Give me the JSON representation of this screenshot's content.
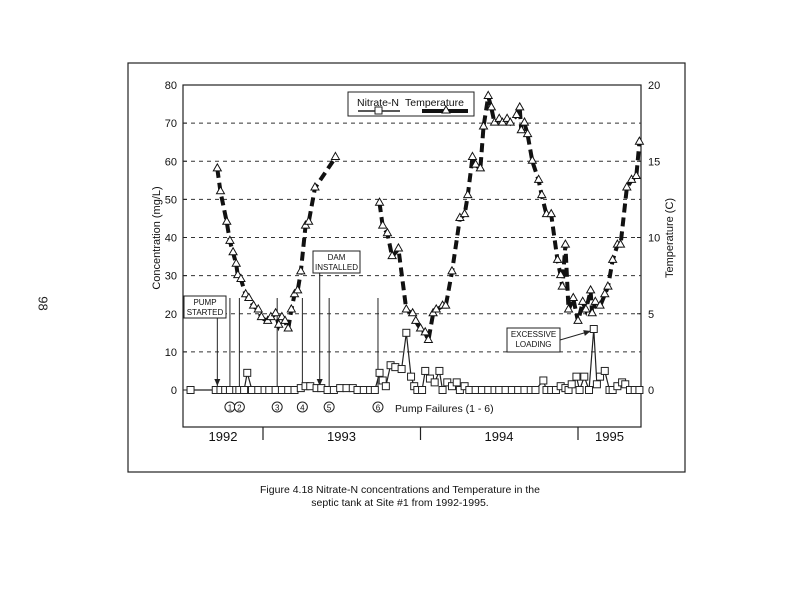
{
  "page_number": "98",
  "caption": {
    "line1": "Figure 4.18  Nitrate-N concentrations and Temperature in the",
    "line2": "septic tank at Site #1 from 1992-1995."
  },
  "chart_data": {
    "type": "line",
    "title": "",
    "xlabel": "",
    "ylabel": "Concentration (mg/L)",
    "y2label": "Temperature (C)",
    "xlim": [
      1992.49,
      1995.4
    ],
    "ylim": [
      0,
      80
    ],
    "y2lim": [
      0,
      20
    ],
    "yticks": [
      "0",
      "10",
      "20",
      "30",
      "40",
      "50",
      "60",
      "70",
      "80"
    ],
    "y2ticks": [
      "0",
      "5",
      "10",
      "15",
      "20"
    ],
    "grid": "horizontal dashed",
    "legend": {
      "placement": "top-center",
      "entries": [
        "Nitrate-N",
        "Temperature"
      ]
    },
    "year_labels": [
      "1992",
      "1993",
      "1994",
      "1995"
    ],
    "year_dividers": [
      1993.0,
      1994.0,
      1995.0
    ],
    "series": [
      {
        "name": "Nitrate-N",
        "axis": "left",
        "unit": "mg/L",
        "marker": "square",
        "points": [
          [
            1992.54,
            0
          ],
          [
            1992.7,
            0
          ],
          [
            1992.73,
            0
          ],
          [
            1992.76,
            0
          ],
          [
            1992.79,
            0
          ],
          [
            1992.83,
            0
          ],
          [
            1992.85,
            0
          ],
          [
            1992.88,
            0
          ],
          [
            1992.9,
            4.5
          ],
          [
            1992.93,
            0
          ],
          [
            1992.97,
            0
          ],
          [
            1993.01,
            0
          ],
          [
            1993.04,
            0
          ],
          [
            1993.08,
            0
          ],
          [
            1993.12,
            0
          ],
          [
            1993.16,
            0
          ],
          [
            1993.2,
            0
          ],
          [
            1993.24,
            0.5
          ],
          [
            1993.27,
            1
          ],
          [
            1993.3,
            1
          ],
          [
            1993.34,
            0.5
          ],
          [
            1993.37,
            0.5
          ],
          [
            1993.41,
            0
          ],
          [
            1993.45,
            0
          ],
          [
            1993.49,
            0.5
          ],
          [
            1993.53,
            0.5
          ],
          [
            1993.57,
            0.5
          ],
          [
            1993.6,
            0
          ],
          [
            1993.64,
            0
          ],
          [
            1993.68,
            0
          ],
          [
            1993.71,
            0
          ],
          [
            1993.74,
            4.5
          ],
          [
            1993.76,
            2.5
          ],
          [
            1993.78,
            1
          ],
          [
            1993.81,
            6.5
          ],
          [
            1993.84,
            6
          ],
          [
            1993.88,
            5.5
          ],
          [
            1993.91,
            15
          ],
          [
            1993.94,
            3.5
          ],
          [
            1993.96,
            1
          ],
          [
            1993.98,
            0
          ],
          [
            1994.01,
            0
          ],
          [
            1994.03,
            5
          ],
          [
            1994.06,
            3
          ],
          [
            1994.09,
            2
          ],
          [
            1994.12,
            5
          ],
          [
            1994.14,
            0
          ],
          [
            1994.17,
            2
          ],
          [
            1994.2,
            1
          ],
          [
            1994.23,
            2
          ],
          [
            1994.25,
            0
          ],
          [
            1994.28,
            1
          ],
          [
            1994.31,
            0
          ],
          [
            1994.35,
            0
          ],
          [
            1994.39,
            0
          ],
          [
            1994.43,
            0
          ],
          [
            1994.47,
            0
          ],
          [
            1994.5,
            0
          ],
          [
            1994.54,
            0
          ],
          [
            1994.58,
            0
          ],
          [
            1994.62,
            0
          ],
          [
            1994.66,
            0
          ],
          [
            1994.7,
            0
          ],
          [
            1994.73,
            0
          ],
          [
            1994.78,
            2.5
          ],
          [
            1994.8,
            0
          ],
          [
            1994.83,
            0
          ],
          [
            1994.86,
            0
          ],
          [
            1994.89,
            1
          ],
          [
            1994.92,
            0.5
          ],
          [
            1994.94,
            0
          ],
          [
            1994.96,
            1.5
          ],
          [
            1994.99,
            3.5
          ],
          [
            1995.01,
            0
          ],
          [
            1995.04,
            3.5
          ],
          [
            1995.07,
            0
          ],
          [
            1995.1,
            16
          ],
          [
            1995.12,
            1.5
          ],
          [
            1995.14,
            3.5
          ],
          [
            1995.17,
            5
          ],
          [
            1995.2,
            0
          ],
          [
            1995.22,
            0
          ],
          [
            1995.25,
            1
          ],
          [
            1995.28,
            2
          ],
          [
            1995.3,
            1.5
          ],
          [
            1995.33,
            0
          ],
          [
            1995.36,
            0
          ],
          [
            1995.39,
            0
          ]
        ]
      },
      {
        "name": "Temperature",
        "axis": "right",
        "unit": "C",
        "marker": "triangle",
        "segments": [
          [
            [
              1992.71,
              14.5
            ],
            [
              1992.73,
              13
            ],
            [
              1992.77,
              11
            ],
            [
              1992.79,
              9.75
            ],
            [
              1992.81,
              9
            ],
            [
              1992.83,
              8.25
            ],
            [
              1992.84,
              7.5
            ],
            [
              1992.86,
              7.25
            ],
            [
              1992.89,
              6.25
            ],
            [
              1992.91,
              6
            ],
            [
              1992.94,
              5.5
            ],
            [
              1992.97,
              5.25
            ],
            [
              1992.99,
              4.75
            ],
            [
              1993.03,
              4.5
            ],
            [
              1993.05,
              4.75
            ],
            [
              1993.08,
              5
            ],
            [
              1993.1,
              4.25
            ],
            [
              1993.12,
              4.75
            ],
            [
              1993.14,
              4.5
            ],
            [
              1993.16,
              4
            ],
            [
              1993.18,
              5.25
            ],
            [
              1993.2,
              6.25
            ],
            [
              1993.22,
              6.5
            ],
            [
              1993.24,
              7.75
            ],
            [
              1993.27,
              10.75
            ],
            [
              1993.29,
              11
            ],
            [
              1993.33,
              13.25
            ],
            [
              1993.46,
              15.25
            ]
          ],
          [
            [
              1993.74,
              12.25
            ],
            [
              1993.76,
              10.75
            ],
            [
              1993.79,
              10.25
            ],
            [
              1993.82,
              8.75
            ],
            [
              1993.86,
              9.25
            ],
            [
              1993.91,
              5.25
            ],
            [
              1993.95,
              5
            ],
            [
              1993.97,
              4.5
            ],
            [
              1994.0,
              4
            ],
            [
              1994.03,
              3.75
            ],
            [
              1994.05,
              3.25
            ],
            [
              1994.08,
              5
            ],
            [
              1994.1,
              5.25
            ],
            [
              1994.14,
              5.5
            ],
            [
              1994.16,
              5.5
            ],
            [
              1994.2,
              7.75
            ],
            [
              1994.25,
              11.25
            ],
            [
              1994.28,
              11.5
            ],
            [
              1994.3,
              12.75
            ],
            [
              1994.33,
              15.25
            ],
            [
              1994.35,
              14.75
            ],
            [
              1994.38,
              14.5
            ],
            [
              1994.4,
              17.25
            ],
            [
              1994.43,
              19.25
            ],
            [
              1994.45,
              18.5
            ],
            [
              1994.47,
              17.5
            ],
            [
              1994.5,
              17.75
            ],
            [
              1994.52,
              17.5
            ],
            [
              1994.55,
              17.75
            ],
            [
              1994.57,
              17.5
            ],
            [
              1994.61,
              18
            ],
            [
              1994.63,
              18.5
            ],
            [
              1994.64,
              17
            ],
            [
              1994.66,
              17.5
            ],
            [
              1994.68,
              16.75
            ],
            [
              1994.71,
              15
            ],
            [
              1994.75,
              13.75
            ],
            [
              1994.77,
              12.75
            ],
            [
              1994.8,
              11.5
            ],
            [
              1994.83,
              11.5
            ],
            [
              1994.87,
              8.5
            ],
            [
              1994.89,
              7.5
            ],
            [
              1994.9,
              6.75
            ],
            [
              1994.92,
              9.5
            ],
            [
              1994.94,
              5.25
            ],
            [
              1994.97,
              6
            ],
            [
              1995.0,
              4.5
            ],
            [
              1995.03,
              5.75
            ],
            [
              1995.05,
              5.25
            ],
            [
              1995.08,
              6.5
            ],
            [
              1995.09,
              5
            ],
            [
              1995.11,
              5.75
            ],
            [
              1995.14,
              5.5
            ],
            [
              1995.17,
              6.25
            ],
            [
              1995.19,
              6.75
            ],
            [
              1995.22,
              8.5
            ],
            [
              1995.25,
              9.5
            ],
            [
              1995.27,
              9.5
            ],
            [
              1995.31,
              13.25
            ],
            [
              1995.34,
              13.75
            ],
            [
              1995.37,
              14
            ],
            [
              1995.39,
              16.25
            ]
          ]
        ]
      }
    ],
    "annotations": {
      "pump_started": {
        "label_line1": "PUMP",
        "label_line2": "STARTED",
        "x": 1992.71
      },
      "dam_installed": {
        "label_line1": "DAM",
        "label_line2": "INSTALLED",
        "x": 1993.36
      },
      "excessive_loading": {
        "label_line1": "EXCESSIVE",
        "label_line2": "LOADING",
        "x": 1995.1,
        "y": 16
      },
      "pump_failures_label": "Pump Failures (1 - 6)",
      "pump_failures": [
        {
          "label": "1",
          "x": 1992.79
        },
        {
          "label": "2",
          "x": 1992.85
        },
        {
          "label": "3",
          "x": 1993.09
        },
        {
          "label": "4",
          "x": 1993.25
        },
        {
          "label": "5",
          "x": 1993.42
        },
        {
          "label": "6",
          "x": 1993.73
        }
      ]
    }
  }
}
